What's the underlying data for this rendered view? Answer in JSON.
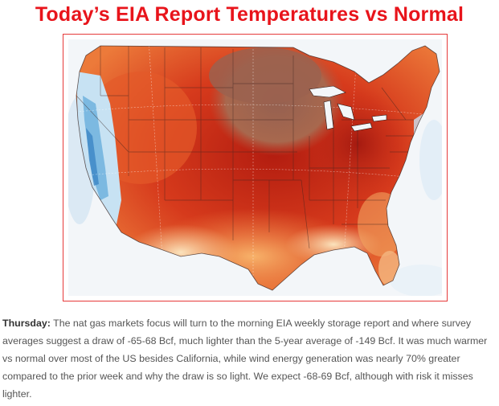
{
  "title": "Today’s EIA Report Temperatures vs Normal",
  "map": {
    "colors": {
      "warm_dark": "#b31d10",
      "warm_mid": "#e0481f",
      "warm_light": "#f5a45c",
      "warm_pale": "#f9d8a8",
      "anomaly_brown": "#9a5c45",
      "cool_light": "#c7e2f3",
      "cool_mid": "#6fb1dd",
      "neutral": "#f4f1ee"
    }
  },
  "caption": {
    "label": "Thursday:",
    "text": "  The nat gas markets focus will turn to the morning EIA weekly storage report and where survey averages suggest a draw of -65-68 Bcf, much lighter than the 5-year average of -149 Bcf. It was much warmer vs normal over most of the US besides California, while wind energy generation was nearly 70% greater compared to the prior week and why the draw is so light. We expect -68-69 Bcf, although with risk it misses lighter."
  }
}
